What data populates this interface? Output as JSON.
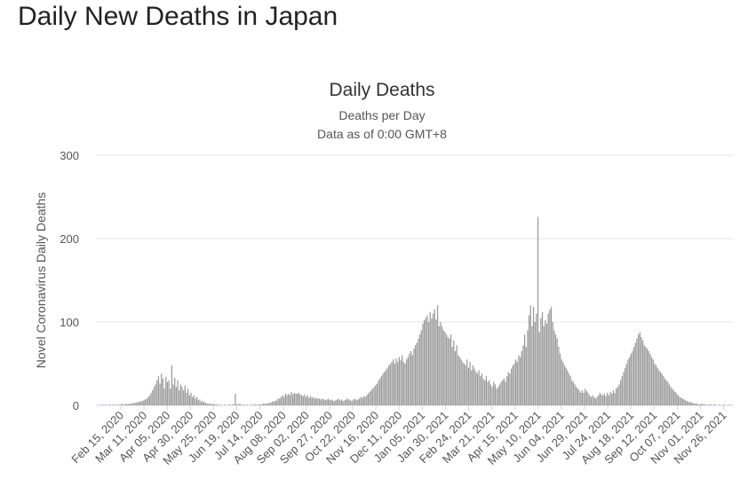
{
  "page": {
    "title": "Daily New Deaths in Japan"
  },
  "chart_data": {
    "type": "bar",
    "title": "Daily Deaths",
    "subtitle_lines": [
      "Deaths per Day",
      "Data as of 0:00 GMT+8"
    ],
    "ylabel": "Novel Coronavirus Daily Deaths",
    "xlabel": "",
    "ylim": [
      0,
      300
    ],
    "yticks": [
      0,
      100,
      200,
      300
    ],
    "grid": true,
    "legend": "none",
    "bar_color": "#999999",
    "date_range": [
      "2020-02-15",
      "2021-12-06"
    ],
    "tick_labels": [
      "Feb 15, 2020",
      "Mar 11, 2020",
      "Apr 05, 2020",
      "Apr 30, 2020",
      "May 25, 2020",
      "Jun 19, 2020",
      "Jul 14, 2020",
      "Aug 08, 2020",
      "Sep 02, 2020",
      "Sep 27, 2020",
      "Oct 22, 2020",
      "Nov 16, 2020",
      "Dec 11, 2020",
      "Jan 05, 2021",
      "Jan 30, 2021",
      "Feb 24, 2021",
      "Mar 21, 2021",
      "Apr 15, 2021",
      "May 10, 2021",
      "Jun 04, 2021",
      "Jun 29, 2021",
      "Jul 24, 2021",
      "Aug 18, 2021",
      "Sep 12, 2021",
      "Oct 07, 2021",
      "Nov 01, 2021",
      "Nov 26, 2021"
    ],
    "series": [
      {
        "values": [
          0,
          0,
          0,
          0,
          1,
          0,
          1,
          0,
          0,
          1,
          0,
          1,
          0,
          1,
          0,
          1,
          0,
          2,
          1,
          1,
          2,
          1,
          2,
          2,
          2,
          3,
          3,
          3,
          4,
          4,
          5,
          5,
          6,
          7,
          8,
          10,
          12,
          15,
          18,
          22,
          25,
          30,
          35,
          26,
          38,
          32,
          20,
          34,
          28,
          30,
          20,
          48,
          25,
          33,
          22,
          30,
          18,
          25,
          22,
          18,
          24,
          15,
          20,
          12,
          15,
          10,
          12,
          8,
          10,
          6,
          7,
          4,
          5,
          4,
          3,
          2,
          2,
          2,
          1,
          2,
          1,
          1,
          1,
          0,
          1,
          0,
          0,
          1,
          0,
          0,
          1,
          0,
          1,
          1,
          14,
          1,
          1,
          2,
          1,
          0,
          1,
          0,
          1,
          0,
          0,
          1,
          0,
          1,
          1,
          0,
          1,
          1,
          1,
          2,
          2,
          2,
          2,
          3,
          3,
          4,
          5,
          5,
          6,
          8,
          8,
          10,
          12,
          10,
          14,
          12,
          14,
          12,
          16,
          13,
          15,
          14,
          14,
          15,
          13,
          12,
          11,
          13,
          10,
          12,
          9,
          11,
          9,
          10,
          8,
          9,
          8,
          8,
          7,
          8,
          7,
          6,
          7,
          8,
          6,
          7,
          6,
          5,
          6,
          7,
          8,
          6,
          7,
          5,
          6,
          7,
          8,
          7,
          6,
          5,
          7,
          8,
          6,
          7,
          8,
          10,
          9,
          11,
          10,
          12,
          14,
          16,
          18,
          20,
          22,
          24,
          26,
          30,
          32,
          35,
          38,
          40,
          42,
          45,
          48,
          50,
          52,
          55,
          50,
          56,
          52,
          58,
          54,
          60,
          52,
          50,
          55,
          58,
          62,
          65,
          60,
          68,
          72,
          75,
          80,
          85,
          90,
          98,
          102,
          105,
          108,
          100,
          112,
          104,
          110,
          115,
          103,
          120,
          95,
          100,
          95,
          90,
          88,
          85,
          82,
          80,
          85,
          70,
          78,
          65,
          72,
          60,
          58,
          55,
          52,
          50,
          48,
          55,
          45,
          52,
          42,
          48,
          44,
          40,
          38,
          42,
          35,
          38,
          32,
          30,
          35,
          28,
          30,
          25,
          22,
          28,
          25,
          20,
          22,
          25,
          28,
          30,
          32,
          28,
          35,
          40,
          38,
          44,
          48,
          50,
          55,
          52,
          60,
          58,
          65,
          72,
          85,
          70,
          90,
          108,
          120,
          95,
          118,
          100,
          110,
          226,
          88,
          105,
          112,
          95,
          102,
          98,
          110,
          115,
          118,
          100,
          90,
          85,
          80,
          70,
          62,
          55,
          52,
          48,
          45,
          42,
          38,
          35,
          30,
          28,
          25,
          22,
          20,
          18,
          15,
          18,
          15,
          20,
          17,
          15,
          12,
          10,
          12,
          10,
          8,
          10,
          12,
          15,
          13,
          12,
          14,
          11,
          15,
          12,
          16,
          14,
          18,
          15,
          20,
          22,
          25,
          30,
          35,
          40,
          45,
          50,
          55,
          58,
          62,
          65,
          70,
          75,
          80,
          85,
          88,
          82,
          78,
          72,
          70,
          68,
          65,
          62,
          58,
          55,
          50,
          48,
          45,
          42,
          40,
          38,
          35,
          32,
          30,
          28,
          25,
          22,
          20,
          18,
          16,
          14,
          12,
          10,
          9,
          8,
          7,
          6,
          5,
          4,
          4,
          3,
          3,
          2,
          2,
          2,
          1,
          1,
          2,
          1,
          1,
          1,
          0,
          1,
          1,
          0,
          1,
          1,
          0,
          0,
          1,
          0,
          0,
          1,
          0,
          0,
          0,
          1,
          0,
          0
        ]
      }
    ]
  }
}
